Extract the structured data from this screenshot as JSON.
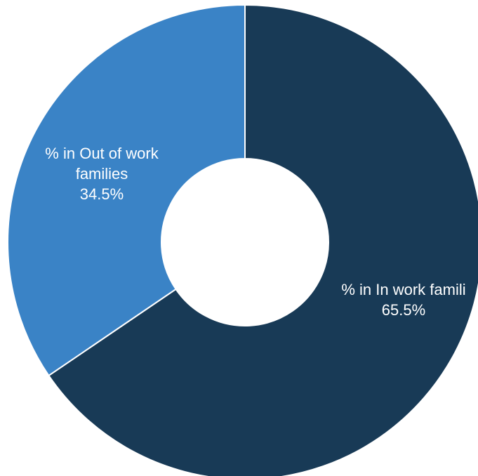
{
  "chart_data": {
    "type": "pie",
    "variant": "donut",
    "slices": [
      {
        "category": "% in In work families",
        "label_lines": [
          "% in In work famili"
        ],
        "value_label": "65.5%",
        "value": 65.5,
        "color": "#183a56"
      },
      {
        "category": "% in Out of work families",
        "label_lines": [
          "% in Out of work",
          "families"
        ],
        "value_label": "34.5%",
        "value": 34.5,
        "color": "#3a83c6"
      }
    ],
    "legend": "none"
  }
}
